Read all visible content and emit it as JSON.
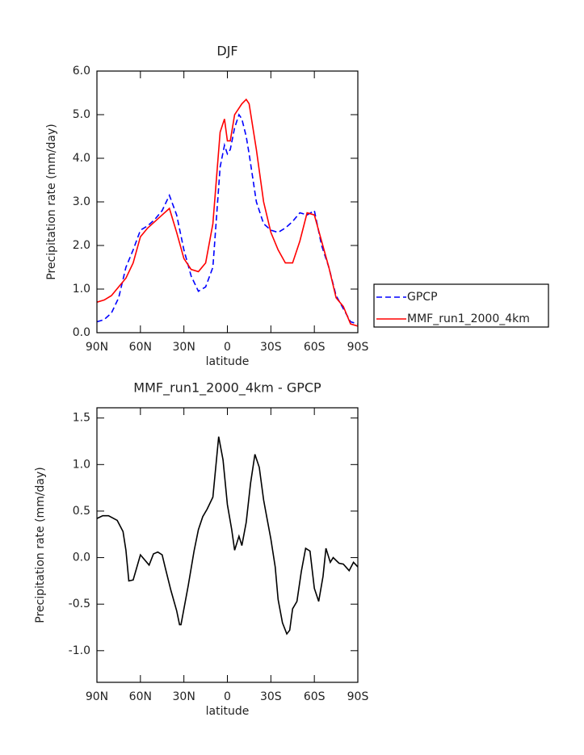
{
  "chart_data": [
    {
      "type": "line",
      "title": "DJF",
      "xlabel": "latitude",
      "ylabel": "Precipitation rate (mm/day)",
      "x": [
        90,
        85,
        80,
        75,
        70,
        65,
        60,
        55,
        50,
        45,
        40,
        35,
        30,
        25,
        20,
        15,
        10,
        5,
        2,
        0,
        -2,
        -5,
        -8,
        -10,
        -13,
        -15,
        -20,
        -25,
        -30,
        -35,
        -40,
        -45,
        -50,
        -55,
        -60,
        -65,
        -70,
        -75,
        -80,
        -85,
        -90
      ],
      "series": [
        {
          "name": "GPCP",
          "color": "#0000ff",
          "dashed": true,
          "values": [
            0.25,
            0.3,
            0.45,
            0.8,
            1.5,
            1.9,
            2.35,
            2.45,
            2.6,
            2.8,
            3.15,
            2.7,
            1.9,
            1.3,
            0.95,
            1.05,
            1.5,
            3.8,
            4.3,
            4.1,
            4.2,
            4.7,
            5.0,
            4.9,
            4.5,
            4.1,
            3.0,
            2.5,
            2.35,
            2.3,
            2.4,
            2.55,
            2.75,
            2.7,
            2.8,
            2.0,
            1.5,
            0.85,
            0.55,
            0.25,
            0.2
          ]
        },
        {
          "name": "MMF_run1_2000_4km",
          "color": "#ff0000",
          "dashed": false,
          "values": [
            0.7,
            0.75,
            0.85,
            1.05,
            1.25,
            1.6,
            2.2,
            2.4,
            2.55,
            2.7,
            2.85,
            2.3,
            1.7,
            1.45,
            1.4,
            1.6,
            2.5,
            4.6,
            4.9,
            4.4,
            4.4,
            5.0,
            5.15,
            5.25,
            5.35,
            5.25,
            4.2,
            3.0,
            2.3,
            1.9,
            1.6,
            1.6,
            2.1,
            2.75,
            2.7,
            2.1,
            1.5,
            0.8,
            0.6,
            0.2,
            0.15
          ]
        }
      ],
      "xlim": [
        90,
        -90
      ],
      "xticks": [
        {
          "value": 90,
          "label": "90N"
        },
        {
          "value": 60,
          "label": "60N"
        },
        {
          "value": 30,
          "label": "30N"
        },
        0,
        {
          "value": -30,
          "label": "30S"
        },
        {
          "value": -60,
          "label": "60S"
        },
        {
          "value": -90,
          "label": "90S"
        }
      ],
      "ylim": [
        0,
        6
      ],
      "yticks": [
        {
          "value": 0,
          "label": "0.0"
        },
        {
          "value": 1,
          "label": "1.0"
        },
        {
          "value": 2,
          "label": "2.0"
        },
        {
          "value": 3,
          "label": "3.0"
        },
        {
          "value": 4,
          "label": "4.0"
        },
        {
          "value": 5,
          "label": "5.0"
        },
        {
          "value": 6,
          "label": "6.0"
        }
      ],
      "legend": "outside-right"
    },
    {
      "type": "line",
      "title": "MMF_run1_2000_4km - GPCP",
      "xlabel": "latitude",
      "ylabel": "Precipitation rate (mm/day)",
      "x": [
        90,
        86,
        82,
        76,
        72,
        70,
        68,
        65,
        60,
        54,
        51,
        48,
        45,
        43,
        39,
        35,
        33,
        32,
        27,
        23,
        20,
        17,
        14,
        10,
        6,
        3,
        0,
        -3,
        -5,
        -8,
        -10,
        -13,
        -16,
        -19,
        -22,
        -25,
        -27,
        -30,
        -33,
        -35,
        -38,
        -41,
        -43,
        -45,
        -48,
        -51,
        -54,
        -57,
        -60,
        -63,
        -66,
        -68,
        -71,
        -73,
        -77,
        -80,
        -84,
        -87,
        -90
      ],
      "series": [
        {
          "name": "MMF_run1_2000_4km - GPCP",
          "color": "#000000",
          "dashed": false,
          "values": [
            0.42,
            0.45,
            0.45,
            0.4,
            0.28,
            0.08,
            -0.25,
            -0.24,
            0.03,
            -0.08,
            0.04,
            0.06,
            0.03,
            -0.1,
            -0.35,
            -0.57,
            -0.72,
            -0.72,
            -0.3,
            0.07,
            0.3,
            0.44,
            0.52,
            0.65,
            1.3,
            1.05,
            0.57,
            0.3,
            0.08,
            0.23,
            0.13,
            0.38,
            0.8,
            1.11,
            0.97,
            0.62,
            0.45,
            0.2,
            -0.1,
            -0.45,
            -0.7,
            -0.82,
            -0.78,
            -0.55,
            -0.47,
            -0.15,
            0.1,
            0.07,
            -0.33,
            -0.47,
            -0.2,
            0.1,
            -0.05,
            0,
            -0.06,
            -0.07,
            -0.14,
            -0.05,
            -0.1
          ]
        }
      ],
      "xlim": [
        90,
        -90
      ],
      "xticks": [
        {
          "value": 90,
          "label": "90N"
        },
        {
          "value": 60,
          "label": "60N"
        },
        {
          "value": 30,
          "label": "30N"
        },
        0,
        {
          "value": -30,
          "label": "30S"
        },
        {
          "value": -60,
          "label": "60S"
        },
        {
          "value": -90,
          "label": "90S"
        }
      ],
      "ylim": [
        -1.34,
        1.61
      ],
      "yticks": [
        {
          "value": -1,
          "label": "-1.0"
        },
        -0.5,
        {
          "value": 0,
          "label": "0.0"
        },
        0.5,
        {
          "value": 1,
          "label": "1.0"
        },
        1.5
      ]
    }
  ]
}
